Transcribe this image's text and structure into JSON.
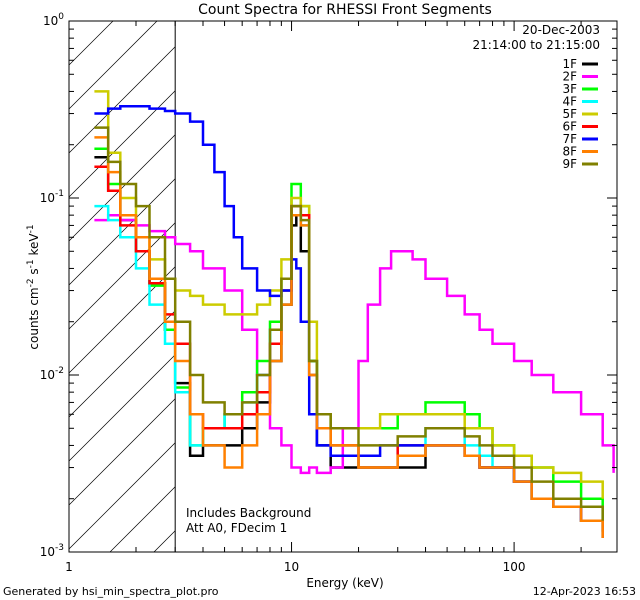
{
  "chart_data": {
    "type": "line",
    "title": "Count Spectra for RHESSI Front Segments",
    "xlabel": "Energy (keV)",
    "ylabel_parts": [
      "counts cm",
      "-2",
      " s",
      "-1",
      " keV",
      "-1"
    ],
    "xscale": "log",
    "yscale": "log",
    "xlim": [
      1,
      290
    ],
    "ylim": [
      0.001,
      1
    ],
    "x_ticks": [
      {
        "value": 1,
        "label": "1"
      },
      {
        "value": 10,
        "label": "10"
      },
      {
        "value": 100,
        "label": "100"
      }
    ],
    "y_ticks": [
      {
        "value": 1,
        "base": "10",
        "exp": "0"
      },
      {
        "value": 0.1,
        "base": "10",
        "exp": "-1"
      },
      {
        "value": 0.01,
        "base": "10",
        "exp": "-2"
      },
      {
        "value": 0.001,
        "base": "10",
        "exp": "-3"
      }
    ],
    "hatched_region": [
      1,
      3
    ],
    "date": "20-Dec-2003",
    "time_range": "21:14:00 to 21:15:00",
    "annotations": [
      "Includes Background",
      "Att A0, FDecim 1"
    ],
    "series": [
      {
        "name": "1F",
        "color": "#000000",
        "x": [
          1.3,
          1.5,
          1.7,
          2.0,
          2.3,
          2.7,
          3.0,
          3.5,
          4.0,
          5.0,
          6.0,
          7.0,
          8.0,
          9.0,
          10.0,
          10.5,
          11.0,
          12.0,
          13.0,
          15.0,
          20.0,
          25.0,
          30.0,
          40.0,
          50.0,
          60.0,
          70.0,
          80.0,
          100.0,
          120.0,
          150.0,
          200.0,
          250.0
        ],
        "y": [
          0.17,
          0.11,
          0.075,
          0.05,
          0.033,
          0.018,
          0.009,
          0.0035,
          0.004,
          0.004,
          0.005,
          0.007,
          0.012,
          0.025,
          0.07,
          0.08,
          0.05,
          0.012,
          0.004,
          0.003,
          0.003,
          0.003,
          0.003,
          0.004,
          0.004,
          0.0035,
          0.003,
          0.003,
          0.0025,
          0.002,
          0.0018,
          0.0015,
          0.0013
        ]
      },
      {
        "name": "2F",
        "color": "#ff00ff",
        "x": [
          1.3,
          1.5,
          1.7,
          2.0,
          2.3,
          2.7,
          3.0,
          3.5,
          4.0,
          5.0,
          6.0,
          7.0,
          8.0,
          9.0,
          10.0,
          11.0,
          12.0,
          13.0,
          15.0,
          17.0,
          20.0,
          22.0,
          25.0,
          28.0,
          30.0,
          35.0,
          40.0,
          50.0,
          60.0,
          70.0,
          80.0,
          100.0,
          120.0,
          150.0,
          200.0,
          250.0,
          280.0
        ],
        "y": [
          0.075,
          0.08,
          0.075,
          0.07,
          0.065,
          0.06,
          0.055,
          0.05,
          0.04,
          0.03,
          0.018,
          0.01,
          0.005,
          0.004,
          0.003,
          0.0028,
          0.003,
          0.0028,
          0.003,
          0.005,
          0.012,
          0.025,
          0.04,
          0.05,
          0.05,
          0.045,
          0.035,
          0.028,
          0.022,
          0.018,
          0.015,
          0.012,
          0.01,
          0.008,
          0.006,
          0.004,
          0.0028
        ]
      },
      {
        "name": "3F",
        "color": "#00ff00",
        "x": [
          1.3,
          1.5,
          1.7,
          2.0,
          2.3,
          2.7,
          3.0,
          3.5,
          4.0,
          5.0,
          6.0,
          7.0,
          8.0,
          9.0,
          10.0,
          11.0,
          12.0,
          13.0,
          15.0,
          20.0,
          25.0,
          30.0,
          40.0,
          50.0,
          60.0,
          70.0,
          80.0,
          100.0,
          120.0,
          150.0,
          200.0,
          250.0
        ],
        "y": [
          0.19,
          0.12,
          0.08,
          0.05,
          0.032,
          0.018,
          0.0085,
          0.004,
          0.005,
          0.006,
          0.008,
          0.012,
          0.02,
          0.035,
          0.12,
          0.09,
          0.012,
          0.006,
          0.005,
          0.005,
          0.005,
          0.006,
          0.007,
          0.007,
          0.006,
          0.005,
          0.004,
          0.0035,
          0.003,
          0.0025,
          0.002,
          0.0015
        ]
      },
      {
        "name": "4F",
        "color": "#00ffff",
        "x": [
          1.3,
          1.5,
          1.7,
          2.0,
          2.3,
          2.7,
          3.0,
          3.5,
          4.0,
          5.0,
          6.0,
          7.0,
          8.0,
          9.0,
          10.0,
          11.0,
          12.0,
          13.0,
          15.0,
          20.0,
          25.0,
          30.0,
          40.0,
          50.0,
          60.0,
          70.0,
          80.0,
          100.0,
          120.0,
          150.0,
          200.0,
          250.0
        ],
        "y": [
          0.09,
          0.075,
          0.06,
          0.04,
          0.025,
          0.015,
          0.008,
          0.004,
          0.005,
          0.006,
          0.007,
          0.01,
          0.018,
          0.03,
          0.09,
          0.07,
          0.01,
          0.005,
          0.004,
          0.003,
          0.003,
          0.004,
          0.005,
          0.005,
          0.004,
          0.0035,
          0.003,
          0.0025,
          0.002,
          0.0018,
          0.0015,
          0.0012
        ]
      },
      {
        "name": "5F",
        "color": "#cccc00",
        "x": [
          1.3,
          1.5,
          1.7,
          2.0,
          2.3,
          2.7,
          3.0,
          3.5,
          4.0,
          5.0,
          6.0,
          7.0,
          8.0,
          9.0,
          10.0,
          11.0,
          12.0,
          13.0,
          15.0,
          20.0,
          25.0,
          30.0,
          40.0,
          50.0,
          60.0,
          70.0,
          80.0,
          100.0,
          120.0,
          150.0,
          200.0,
          250.0
        ],
        "y": [
          0.4,
          0.18,
          0.1,
          0.06,
          0.045,
          0.035,
          0.03,
          0.028,
          0.025,
          0.022,
          0.022,
          0.025,
          0.03,
          0.045,
          0.1,
          0.09,
          0.02,
          0.006,
          0.005,
          0.005,
          0.006,
          0.006,
          0.006,
          0.006,
          0.005,
          0.005,
          0.004,
          0.0035,
          0.003,
          0.0028,
          0.0025,
          0.002
        ]
      },
      {
        "name": "6F",
        "color": "#ff0000",
        "x": [
          1.3,
          1.5,
          1.7,
          2.0,
          2.3,
          2.7,
          3.0,
          3.5,
          4.0,
          5.0,
          6.0,
          7.0,
          8.0,
          9.0,
          10.0,
          11.0,
          12.0,
          13.0,
          15.0,
          20.0,
          25.0,
          30.0,
          40.0,
          50.0,
          60.0,
          70.0,
          80.0,
          100.0,
          120.0,
          150.0,
          200.0,
          250.0
        ],
        "y": [
          0.15,
          0.11,
          0.07,
          0.05,
          0.033,
          0.022,
          0.015,
          0.006,
          0.005,
          0.005,
          0.006,
          0.008,
          0.015,
          0.03,
          0.09,
          0.08,
          0.01,
          0.005,
          0.004,
          0.003,
          0.003,
          0.004,
          0.004,
          0.004,
          0.0035,
          0.003,
          0.003,
          0.0025,
          0.002,
          0.0018,
          0.0015,
          0.0012
        ]
      },
      {
        "name": "7F",
        "color": "#0000ff",
        "x": [
          1.3,
          1.5,
          1.7,
          2.0,
          2.3,
          2.7,
          3.0,
          3.5,
          4.0,
          4.5,
          5.0,
          5.5,
          6.0,
          7.0,
          8.0,
          9.0,
          10.0,
          10.5,
          11.0,
          12.0,
          13.0,
          15.0,
          20.0,
          25.0,
          30.0,
          40.0,
          50.0,
          60.0,
          70.0,
          80.0,
          100.0,
          120.0,
          150.0,
          200.0
        ],
        "y": [
          0.3,
          0.32,
          0.33,
          0.33,
          0.32,
          0.31,
          0.3,
          0.27,
          0.2,
          0.14,
          0.09,
          0.06,
          0.04,
          0.03,
          0.028,
          0.03,
          0.045,
          0.04,
          0.02,
          0.006,
          0.004,
          0.0035,
          0.0035,
          0.004,
          0.004,
          0.004,
          0.004,
          0.0035,
          0.003,
          0.003,
          0.0025,
          0.002,
          0.0018,
          0.0015
        ]
      },
      {
        "name": "8F",
        "color": "#ff8000",
        "x": [
          1.3,
          1.5,
          1.7,
          2.0,
          2.3,
          2.7,
          3.0,
          3.5,
          4.0,
          5.0,
          6.0,
          7.0,
          8.0,
          9.0,
          10.0,
          11.0,
          12.0,
          13.0,
          15.0,
          20.0,
          25.0,
          30.0,
          40.0,
          50.0,
          60.0,
          70.0,
          80.0,
          100.0,
          120.0,
          150.0,
          200.0,
          250.0
        ],
        "y": [
          0.22,
          0.14,
          0.08,
          0.06,
          0.035,
          0.02,
          0.012,
          0.006,
          0.004,
          0.003,
          0.004,
          0.006,
          0.012,
          0.025,
          0.08,
          0.07,
          0.01,
          0.005,
          0.004,
          0.003,
          0.003,
          0.0035,
          0.004,
          0.004,
          0.0035,
          0.003,
          0.003,
          0.0025,
          0.002,
          0.0018,
          0.0015,
          0.0012
        ]
      },
      {
        "name": "9F",
        "color": "#808000",
        "x": [
          1.3,
          1.5,
          1.7,
          2.0,
          2.3,
          2.7,
          3.0,
          3.5,
          4.0,
          5.0,
          6.0,
          7.0,
          8.0,
          9.0,
          10.0,
          11.0,
          12.0,
          13.0,
          15.0,
          20.0,
          25.0,
          30.0,
          40.0,
          50.0,
          60.0,
          70.0,
          80.0,
          100.0,
          120.0,
          150.0,
          200.0,
          250.0
        ],
        "y": [
          0.25,
          0.16,
          0.12,
          0.09,
          0.06,
          0.035,
          0.02,
          0.01,
          0.007,
          0.006,
          0.007,
          0.01,
          0.018,
          0.035,
          0.09,
          0.075,
          0.012,
          0.006,
          0.005,
          0.004,
          0.004,
          0.0045,
          0.005,
          0.005,
          0.0045,
          0.004,
          0.0035,
          0.003,
          0.0025,
          0.002,
          0.0018,
          0.0015
        ]
      }
    ]
  },
  "footer": {
    "left": "Generated by hsi_min_spectra_plot.pro",
    "right": "12-Apr-2023 16:53"
  }
}
